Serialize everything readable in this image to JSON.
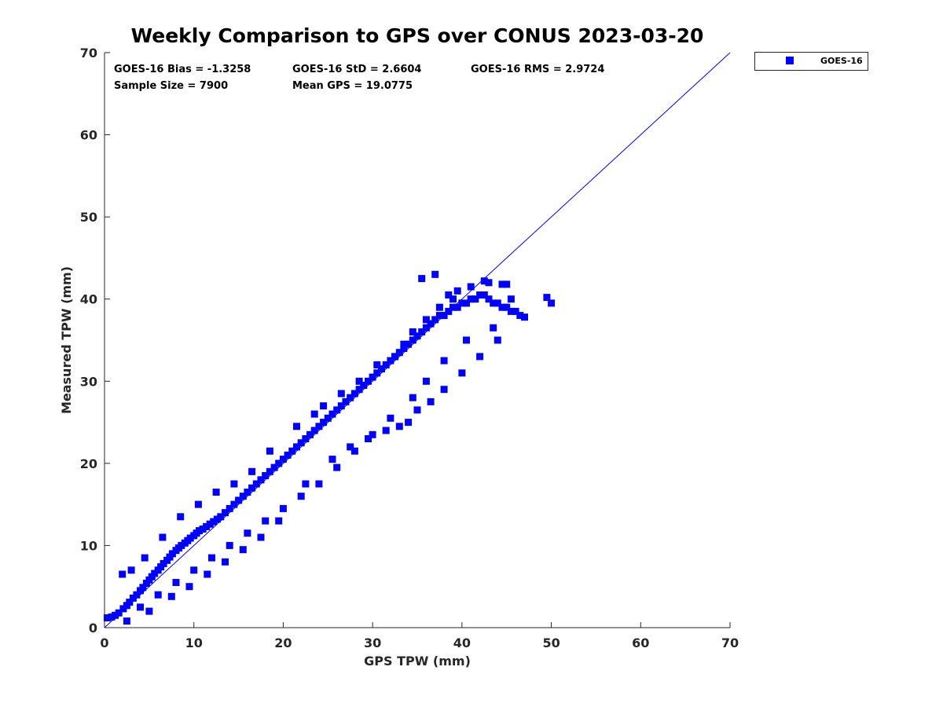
{
  "chart_data": {
    "type": "scatter",
    "title": "Weekly Comparison to GPS over CONUS 2023-03-20",
    "xlabel": "GPS TPW (mm)",
    "ylabel": "Measured TPW (mm)",
    "xlim": [
      0,
      70
    ],
    "ylim": [
      0,
      70
    ],
    "x_ticks": [
      "0",
      "10",
      "20",
      "30",
      "40",
      "50",
      "60",
      "70"
    ],
    "y_ticks": [
      "0",
      "10",
      "20",
      "30",
      "40",
      "50",
      "60",
      "70"
    ],
    "grid": false,
    "legend_position": "outside-top-right",
    "reference_line": {
      "from": [
        0,
        0
      ],
      "to": [
        70,
        70
      ],
      "color": "#0000ff"
    },
    "stats": [
      "GOES-16 Bias = -1.3258",
      "GOES-16 StD = 2.6604",
      "GOES-16 RMS = 2.9724",
      "Sample Size = 7900",
      "Mean GPS = 19.0775"
    ],
    "series": [
      {
        "name": "GOES-16",
        "color": "#0000ff",
        "marker": "square",
        "x": [
          0.3,
          0.8,
          1.2,
          1.6,
          2.1,
          2.5,
          2.8,
          3.2,
          3.6,
          4.0,
          4.3,
          4.7,
          5.0,
          5.3,
          5.6,
          6.0,
          6.3,
          6.6,
          7.0,
          7.3,
          7.6,
          8.0,
          8.3,
          8.6,
          9.0,
          9.3,
          9.6,
          10.0,
          10.3,
          10.6,
          11.0,
          11.4,
          11.8,
          12.2,
          12.6,
          13.0,
          13.5,
          14.0,
          14.5,
          15.0,
          15.5,
          16.0,
          16.5,
          17.0,
          17.5,
          18.0,
          18.5,
          19.0,
          19.5,
          20.0,
          20.5,
          21.0,
          21.5,
          22.0,
          22.5,
          23.0,
          23.5,
          24.0,
          24.5,
          25.0,
          25.5,
          26.0,
          26.5,
          27.0,
          27.5,
          28.0,
          28.5,
          29.0,
          29.5,
          30.0,
          30.5,
          31.0,
          31.5,
          32.0,
          32.5,
          33.0,
          33.5,
          34.0,
          34.5,
          35.0,
          35.5,
          36.0,
          36.5,
          37.0,
          37.5,
          38.0,
          38.5,
          39.0,
          39.5,
          40.0,
          40.5,
          41.0,
          41.5,
          42.0,
          42.5,
          43.0,
          43.5,
          44.0,
          44.5,
          45.0,
          45.5,
          46.0,
          46.5,
          49.5,
          50.0,
          2.0,
          3.0,
          4.5,
          6.5,
          8.5,
          10.5,
          12.5,
          14.5,
          16.5,
          18.5,
          21.5,
          23.5,
          24.5,
          26.5,
          28.5,
          30.5,
          32.5,
          33.5,
          34.5,
          36.0,
          37.5,
          39.0,
          41.0,
          43.0,
          45.0,
          35.5,
          37.0,
          38.5,
          39.5,
          42.5,
          44.5,
          45.5,
          47.0,
          2.5,
          5.0,
          7.5,
          9.5,
          11.5,
          13.5,
          15.5,
          17.5,
          19.5,
          22.5,
          25.5,
          27.5,
          29.5,
          31.5,
          33.0,
          34.0,
          35.0,
          36.5,
          38.0,
          40.0,
          42.0,
          44.0,
          4.0,
          6.0,
          8.0,
          10.0,
          12.0,
          14.0,
          16.0,
          18.0,
          20.0,
          22.0,
          24.0,
          26.0,
          28.0,
          30.0,
          32.0,
          34.5,
          36.0,
          38.0,
          40.5,
          43.5
        ],
        "y": [
          1.2,
          1.3,
          1.5,
          1.8,
          2.3,
          2.7,
          3.1,
          3.6,
          4.0,
          4.5,
          4.9,
          5.4,
          5.8,
          6.2,
          6.6,
          7.0,
          7.4,
          7.8,
          8.2,
          8.6,
          9.0,
          9.4,
          9.7,
          10.0,
          10.3,
          10.6,
          10.9,
          11.2,
          11.5,
          11.8,
          12.0,
          12.3,
          12.6,
          12.9,
          13.2,
          13.5,
          14.0,
          14.5,
          15.0,
          15.5,
          16.0,
          16.5,
          17.0,
          17.5,
          18.0,
          18.5,
          19.0,
          19.5,
          20.0,
          20.5,
          21.0,
          21.5,
          22.0,
          22.5,
          23.0,
          23.5,
          24.0,
          24.5,
          25.0,
          25.5,
          26.0,
          26.5,
          27.0,
          27.5,
          28.0,
          28.5,
          29.0,
          29.5,
          30.0,
          30.5,
          31.0,
          31.5,
          32.0,
          32.5,
          33.0,
          33.5,
          34.0,
          34.5,
          35.0,
          35.5,
          36.0,
          36.5,
          37.0,
          37.5,
          38.0,
          38.0,
          38.5,
          39.0,
          39.0,
          39.5,
          39.5,
          40.0,
          40.0,
          40.5,
          40.5,
          40.0,
          39.5,
          39.5,
          39.0,
          39.0,
          38.5,
          38.5,
          38.0,
          40.2,
          39.5,
          6.5,
          7.0,
          8.5,
          11.0,
          13.5,
          15.0,
          16.5,
          17.5,
          19.0,
          21.5,
          24.5,
          26.0,
          27.0,
          28.5,
          30.0,
          32.0,
          33.0,
          34.5,
          36.0,
          37.5,
          39.0,
          40.0,
          41.5,
          42.0,
          41.8,
          42.5,
          43.0,
          40.5,
          41.0,
          42.2,
          41.8,
          40.0,
          37.8,
          0.8,
          2.0,
          3.8,
          5.0,
          6.5,
          8.0,
          9.5,
          11.0,
          13.0,
          17.5,
          20.5,
          22.0,
          23.0,
          24.0,
          24.5,
          25.0,
          26.5,
          27.5,
          29.0,
          31.0,
          33.0,
          35.0,
          2.5,
          4.0,
          5.5,
          7.0,
          8.5,
          10.0,
          11.5,
          13.0,
          14.5,
          16.0,
          17.5,
          19.5,
          21.5,
          23.5,
          25.5,
          28.0,
          30.0,
          32.5,
          35.0,
          36.5
        ]
      }
    ]
  }
}
